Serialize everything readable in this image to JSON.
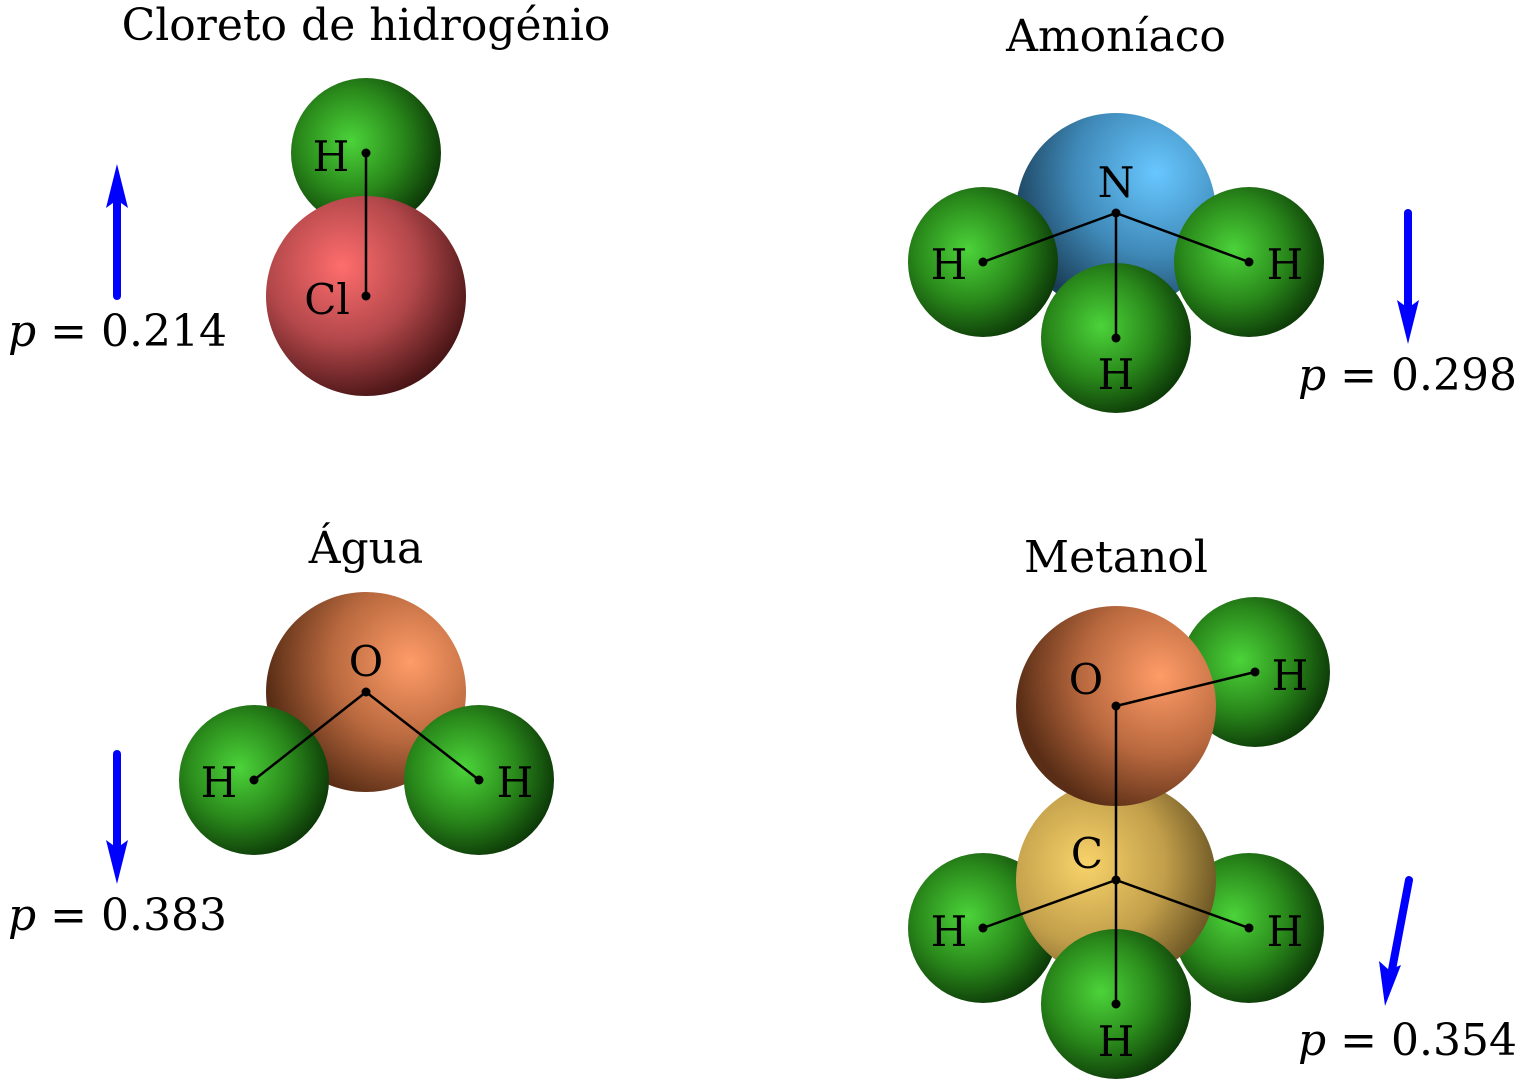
{
  "molecules": {
    "hcl": {
      "title": "Cloreto de hidrogénio",
      "atoms": [
        "H",
        "Cl"
      ],
      "dipole_symbol": "p",
      "dipole_value": "= 0.214",
      "dipole_direction": "up"
    },
    "ammonia": {
      "title": "Amoníaco",
      "atoms": [
        "N",
        "H",
        "H",
        "H"
      ],
      "dipole_symbol": "p",
      "dipole_value": "= 0.298",
      "dipole_direction": "down"
    },
    "water": {
      "title": "Água",
      "atoms": [
        "O",
        "H",
        "H"
      ],
      "dipole_symbol": "p",
      "dipole_value": "= 0.383",
      "dipole_direction": "down"
    },
    "methanol": {
      "title": "Metanol",
      "atoms": [
        "O",
        "H",
        "C",
        "H",
        "H",
        "H"
      ],
      "dipole_symbol": "p",
      "dipole_value": "= 0.354",
      "dipole_direction": "down-left"
    }
  },
  "colors": {
    "hydrogen": "#2e8b1e",
    "chlorine": "#c0474a",
    "nitrogen": "#4a9ccc",
    "oxygen": "#c7764a",
    "carbon": "#c9a848",
    "dipole_arrow": "#0000ff"
  }
}
